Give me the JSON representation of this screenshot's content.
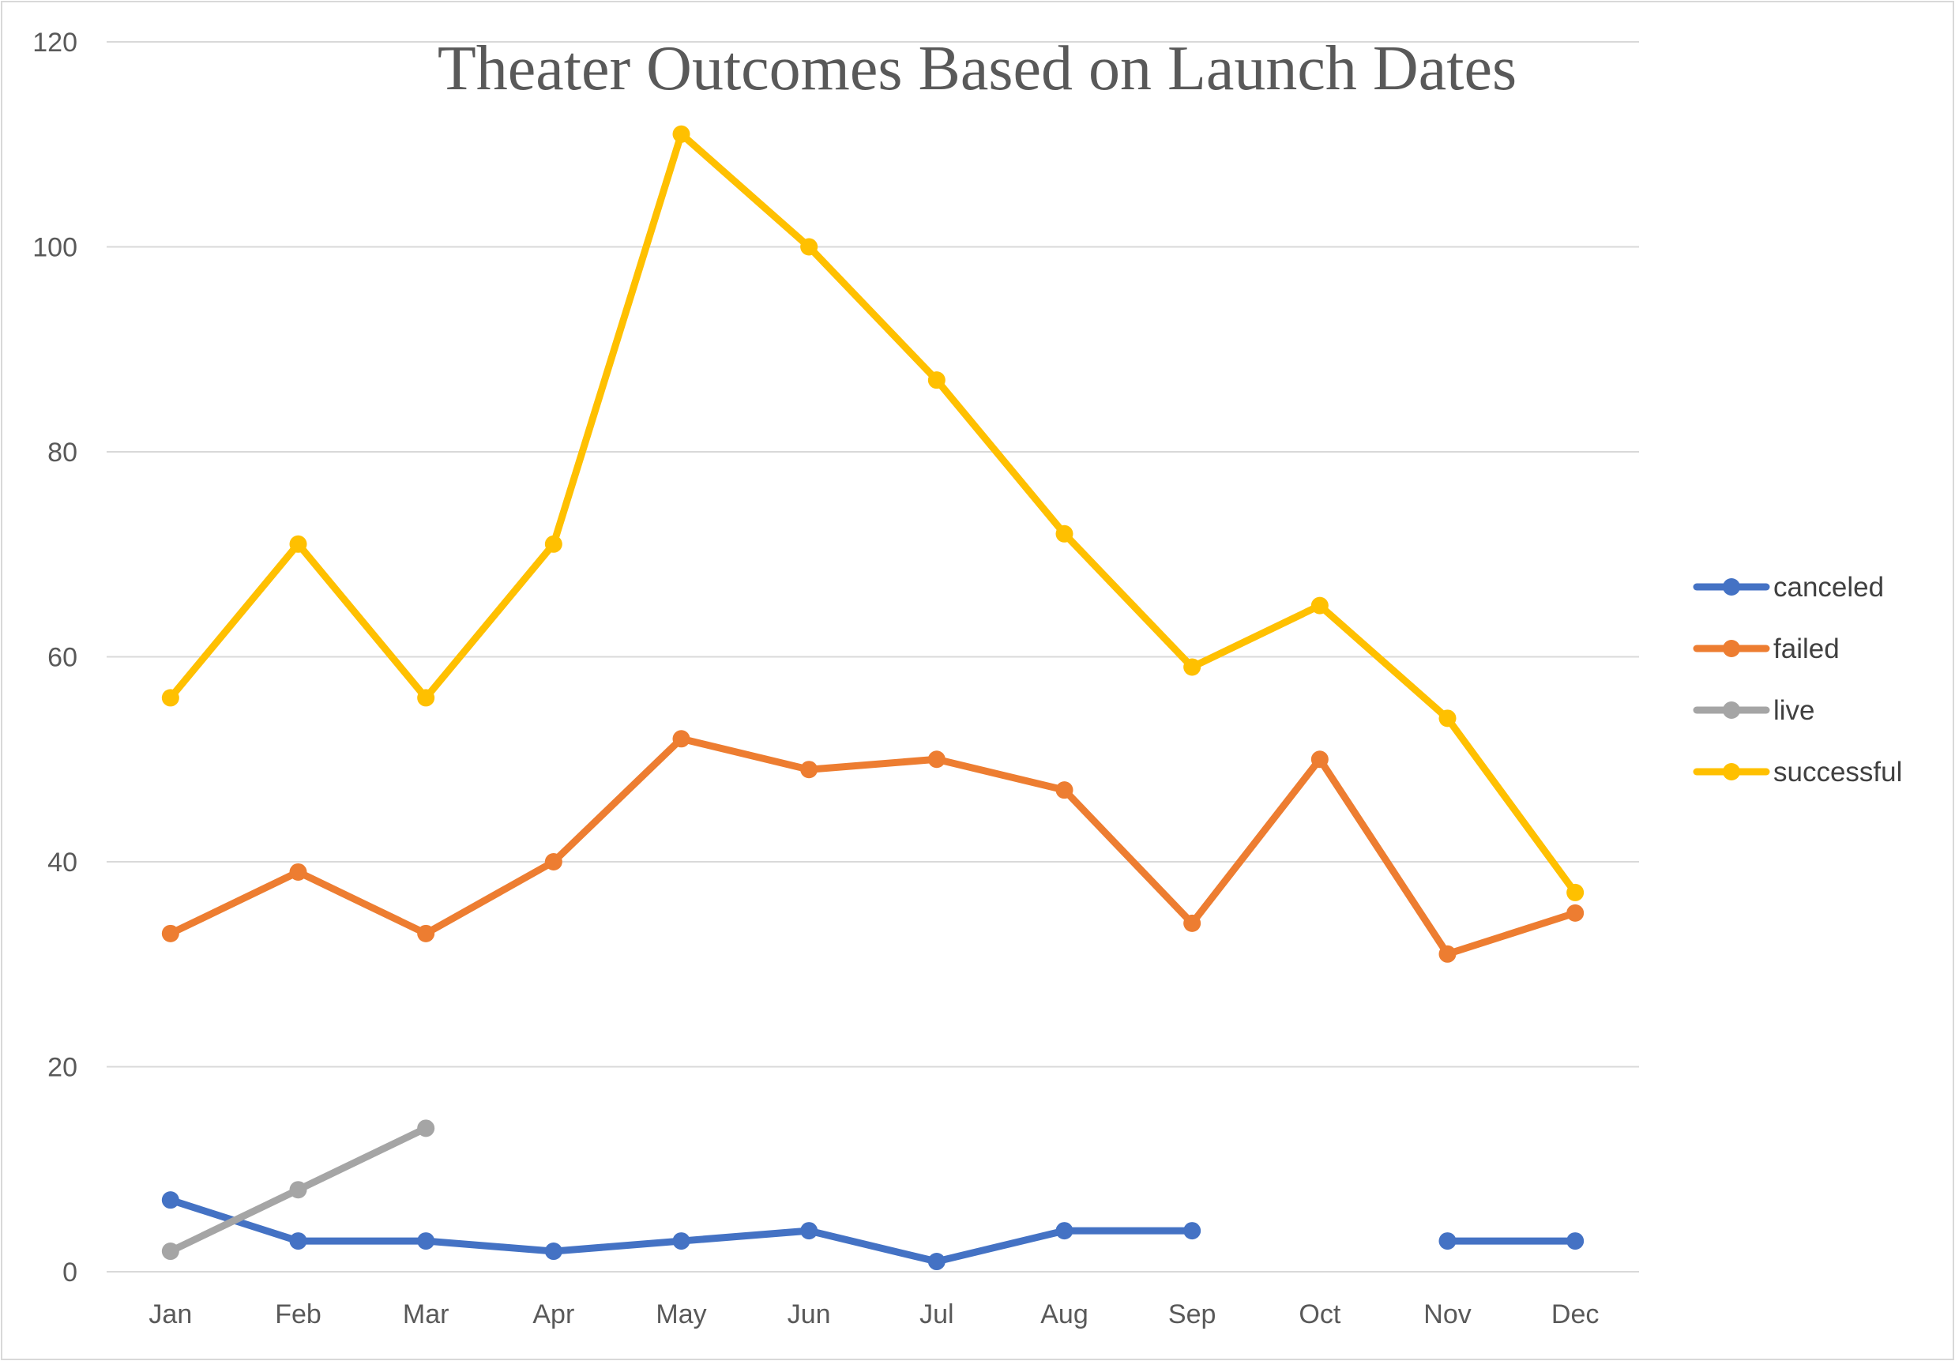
{
  "chart_data": {
    "type": "line",
    "title": "Theater Outcomes Based on Launch Dates",
    "xlabel": "",
    "ylabel": "",
    "categories": [
      "Jan",
      "Feb",
      "Mar",
      "Apr",
      "May",
      "Jun",
      "Jul",
      "Aug",
      "Sep",
      "Oct",
      "Nov",
      "Dec"
    ],
    "ylim": [
      0,
      120
    ],
    "yticks": [
      0,
      20,
      40,
      60,
      80,
      100,
      120
    ],
    "grid": true,
    "legend_position": "right",
    "series": [
      {
        "name": "canceled",
        "color": "#4472C4",
        "values": [
          7,
          3,
          3,
          2,
          3,
          4,
          1,
          4,
          4,
          null,
          3,
          3
        ]
      },
      {
        "name": "failed",
        "color": "#ED7D31",
        "values": [
          33,
          39,
          33,
          40,
          52,
          49,
          50,
          47,
          34,
          50,
          31,
          35
        ]
      },
      {
        "name": "live",
        "color": "#A5A5A5",
        "values": [
          2,
          8,
          14,
          null,
          null,
          null,
          null,
          null,
          null,
          null,
          null,
          null
        ]
      },
      {
        "name": "successful",
        "color": "#FFC000",
        "values": [
          56,
          71,
          56,
          71,
          111,
          100,
          87,
          72,
          59,
          65,
          54,
          37
        ]
      }
    ]
  }
}
